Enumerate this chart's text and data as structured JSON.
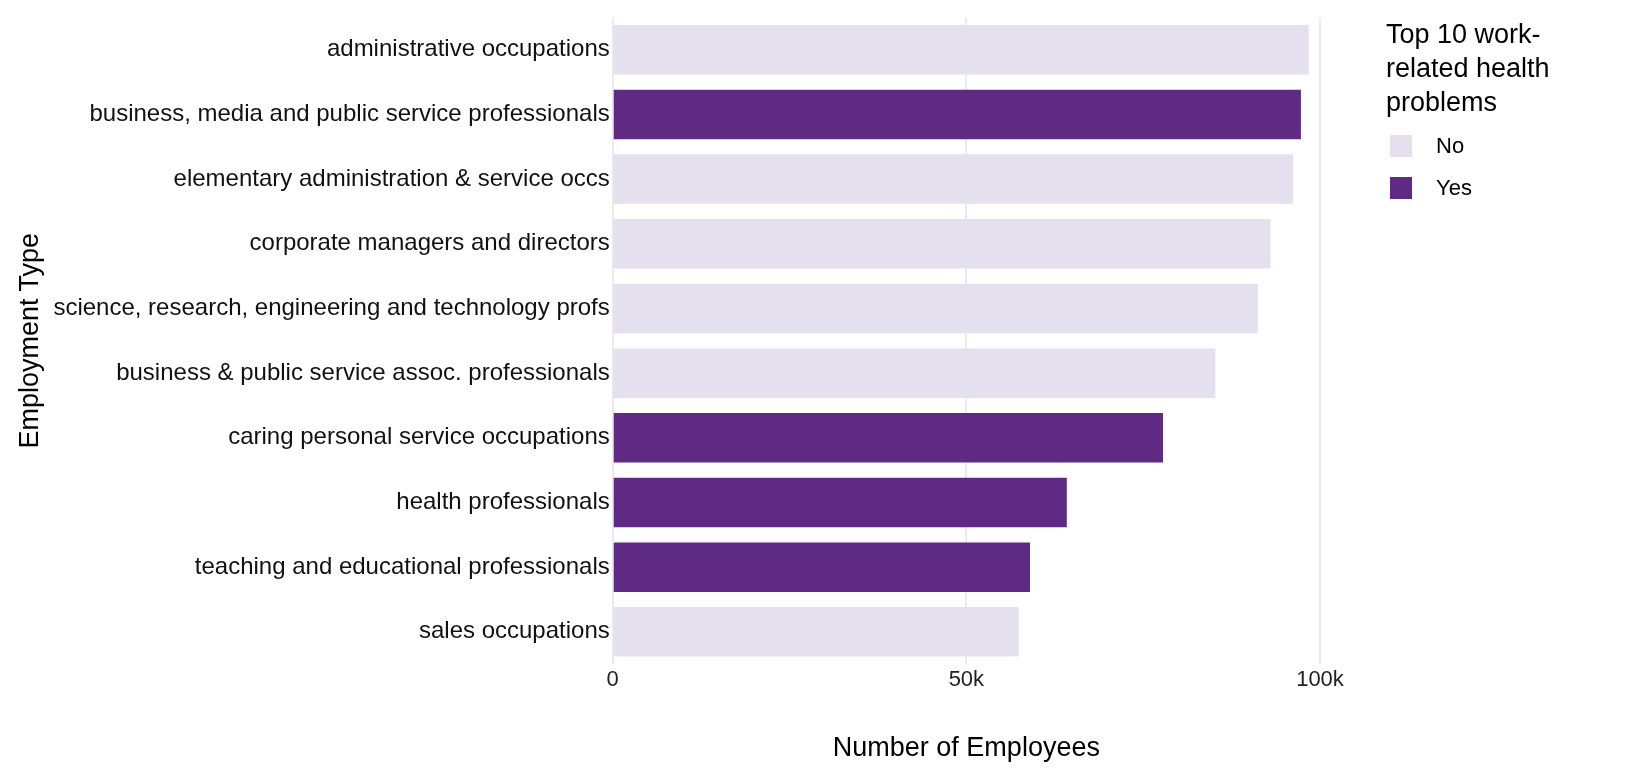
{
  "chart_data": {
    "type": "bar",
    "orientation": "horizontal",
    "stacked": true,
    "categories": [
      "administrative occupations",
      "business, media and public service professionals",
      "elementary administration & service occs",
      "corporate managers and directors",
      "science, research, engineering and technology profs",
      "business & public service assoc. professionals",
      "caring personal service occupations",
      "health professionals",
      "teaching and educational professionals",
      "sales occupations"
    ],
    "series": [
      {
        "name": "No",
        "color": "#e5e0ed",
        "values": [
          98400,
          null,
          96200,
          93000,
          91200,
          85200,
          null,
          null,
          null,
          57400
        ]
      },
      {
        "name": "Yes",
        "color": "#5e2a84",
        "values": [
          null,
          97300,
          null,
          null,
          null,
          null,
          77800,
          64200,
          59000,
          null
        ]
      }
    ],
    "xlim": [
      0,
      100000
    ],
    "xticks": [
      0,
      {
        "value": 50000,
        "label": "50k"
      },
      {
        "value": 100000,
        "label": "100k"
      }
    ],
    "xlabel": "Number of Employees",
    "ylabel": "Employment Type",
    "legend_title": "Top 10 work-related health problems",
    "legend": "right",
    "grid": "x"
  }
}
